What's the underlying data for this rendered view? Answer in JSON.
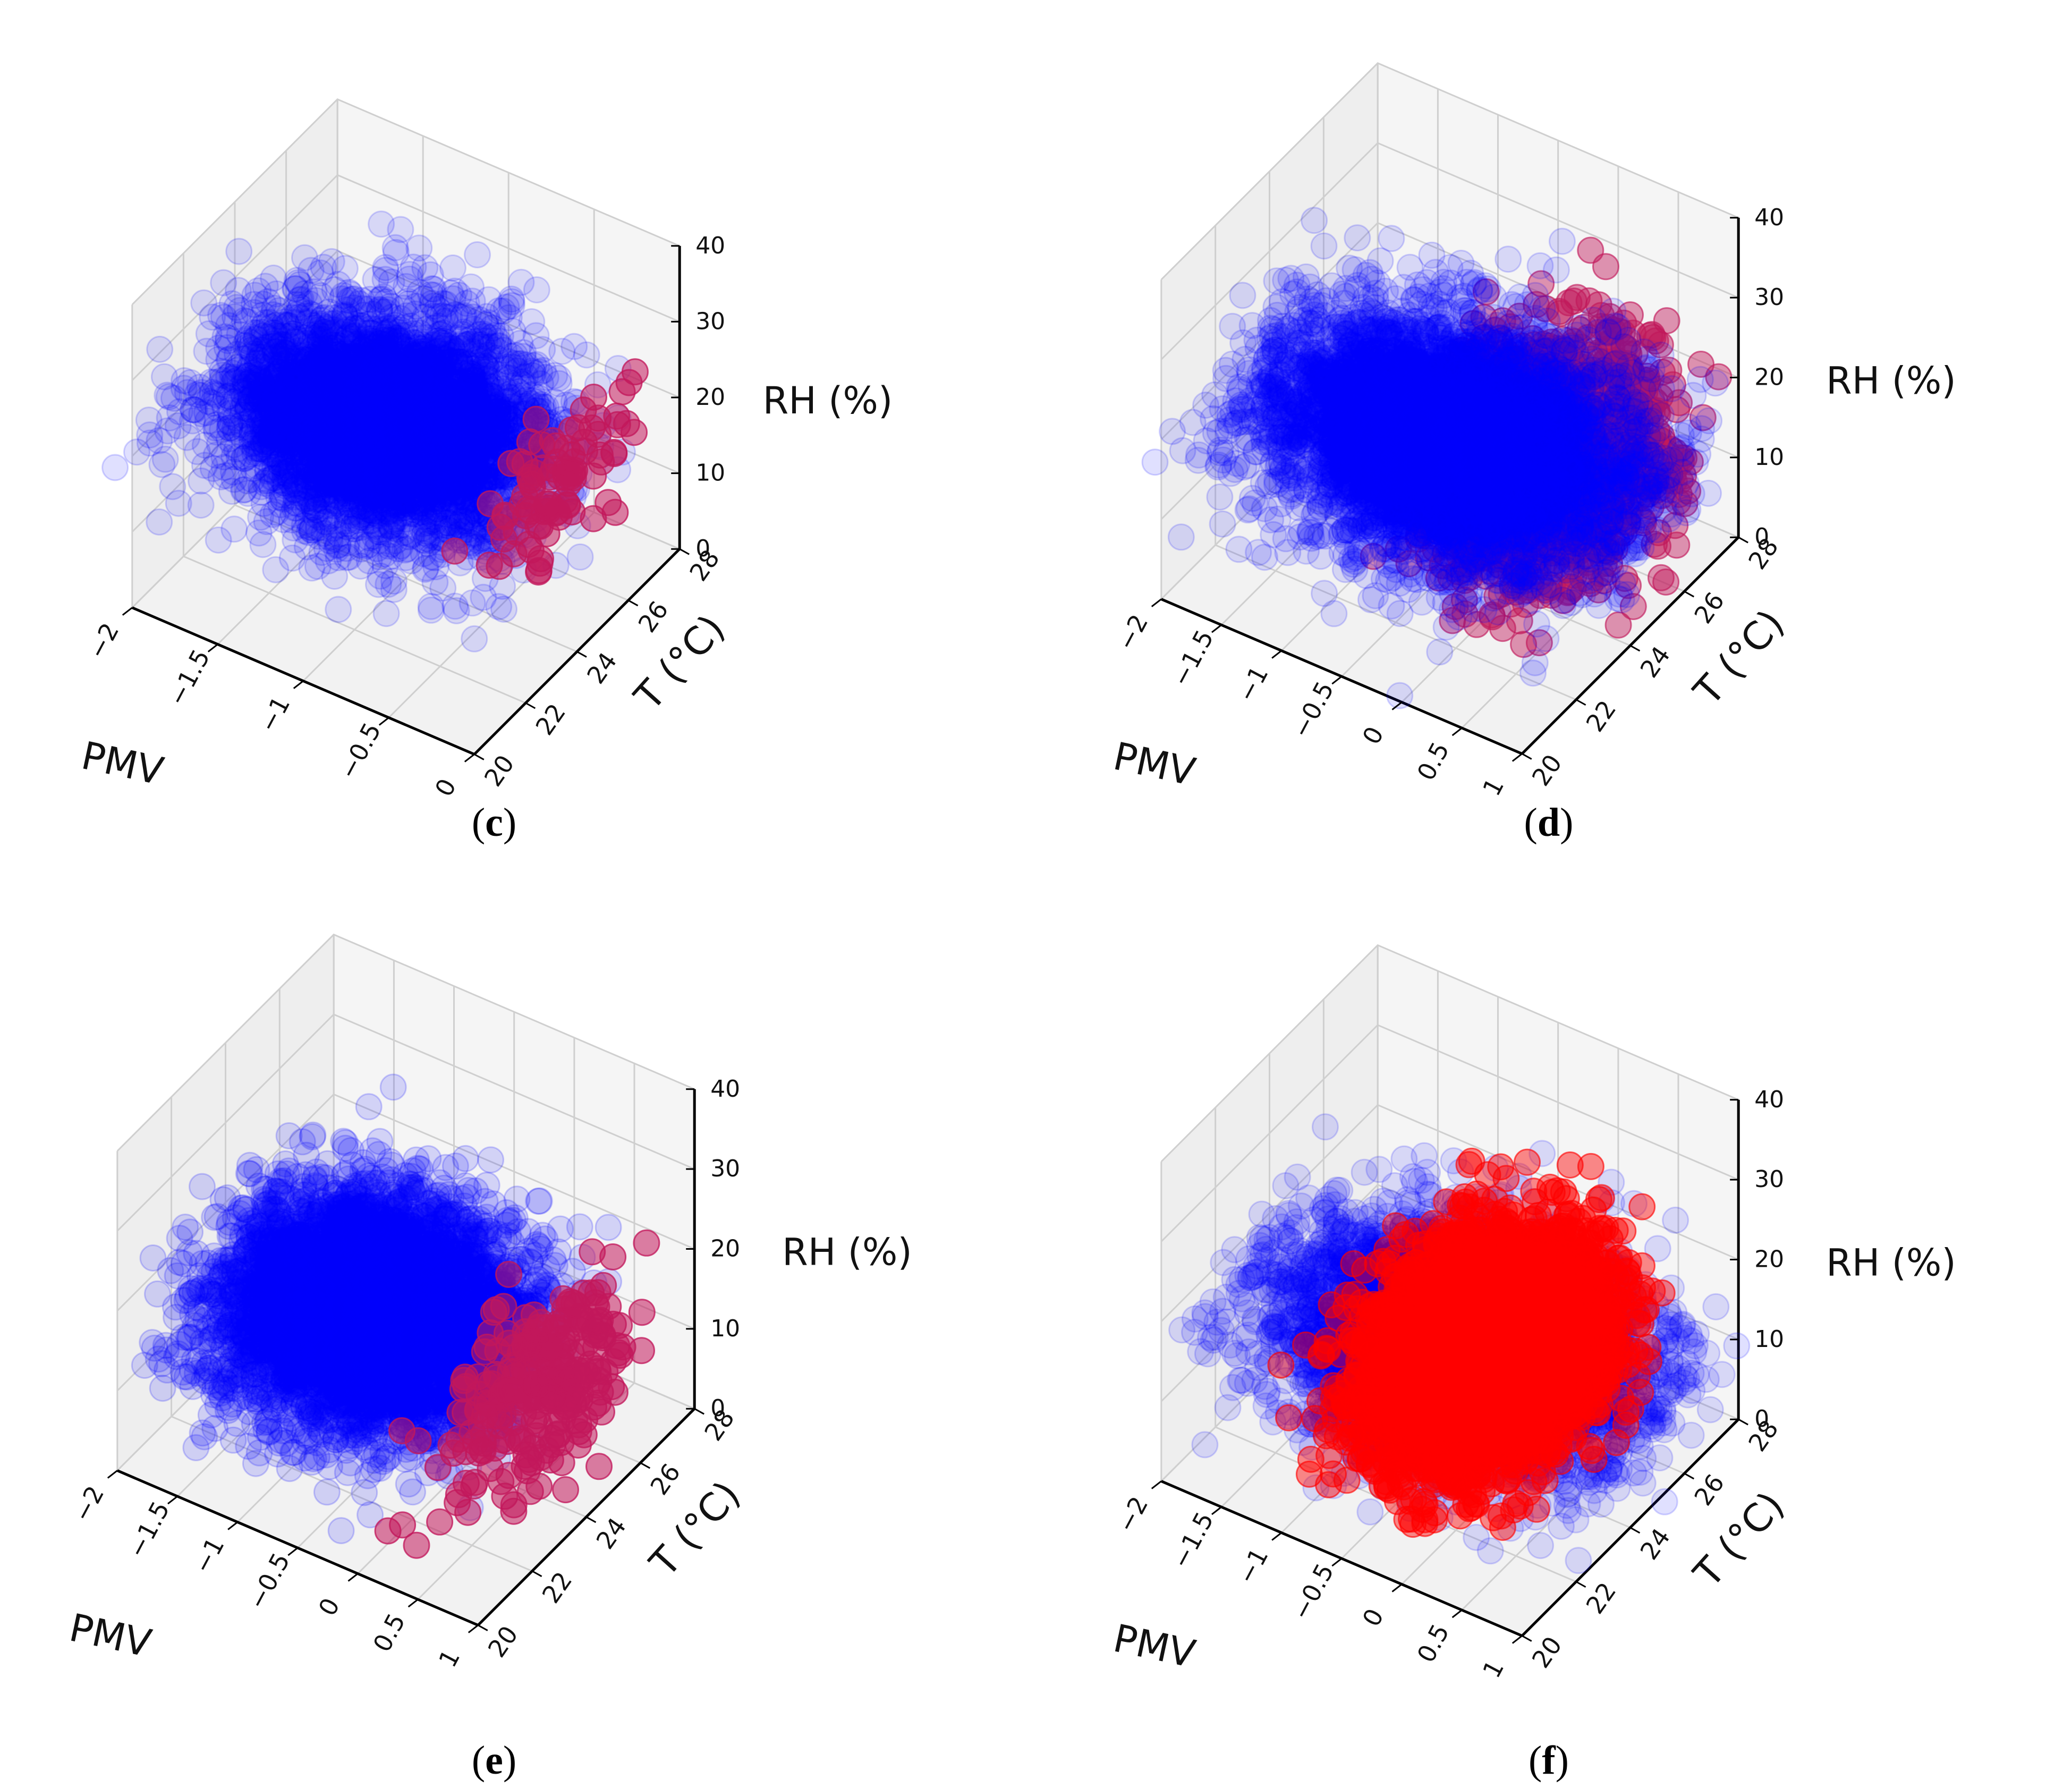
{
  "colors": {
    "blue_points": "#0000ff",
    "red_points": "#ff0000",
    "mixed_points": "#c2185b",
    "pane": "#f2f2f2",
    "grid": "#cfcfcf"
  },
  "chart_data": [
    {
      "id": "c",
      "type": "scatter3d",
      "caption": "c",
      "xlabel": "PMV",
      "ylabel": "T (°C)",
      "zlabel": "RH (%)",
      "xlim": [
        -2,
        0
      ],
      "ylim": [
        20,
        28
      ],
      "zlim": [
        0,
        40
      ],
      "xticks": [
        "−2",
        "−1.5",
        "−1",
        "−0.5",
        "0"
      ],
      "yticks": [
        "20",
        "22",
        "24",
        "26",
        "28"
      ],
      "zticks": [
        "0",
        "10",
        "20",
        "30",
        "40"
      ],
      "series": [
        {
          "color": "blue",
          "alpha": 0.12,
          "n": 4200,
          "pmv": [
            -2.0,
            -0.3
          ],
          "t": [
            21,
            27.5
          ],
          "rh": [
            8,
            28
          ]
        },
        {
          "color": "mixed",
          "alpha": 0.55,
          "n": 90,
          "pmv": [
            -0.3,
            0.0
          ],
          "t": [
            21,
            27.5
          ],
          "rh": [
            10,
            28
          ]
        }
      ]
    },
    {
      "id": "d",
      "type": "scatter3d",
      "caption": "d",
      "xlabel": "PMV",
      "ylabel": "T (°C)",
      "zlabel": "RH (%)",
      "xlim": [
        -2,
        1
      ],
      "ylim": [
        20,
        28
      ],
      "zlim": [
        0,
        40
      ],
      "xticks": [
        "−2",
        "−1.5",
        "−1",
        "−0.5",
        "0",
        "0.5",
        "1"
      ],
      "yticks": [
        "20",
        "22",
        "24",
        "26",
        "28"
      ],
      "zticks": [
        "0",
        "10",
        "20",
        "30",
        "40"
      ],
      "series": [
        {
          "color": "mixed",
          "alpha": 0.45,
          "n": 1600,
          "pmv": [
            -0.5,
            1.0
          ],
          "t": [
            21,
            27.5
          ],
          "rh": [
            5,
            30
          ]
        },
        {
          "color": "blue",
          "alpha": 0.12,
          "n": 5200,
          "pmv": [
            -2.0,
            0.9
          ],
          "t": [
            21,
            27.5
          ],
          "rh": [
            5,
            24
          ]
        }
      ]
    },
    {
      "id": "e",
      "type": "scatter3d",
      "caption": "e",
      "xlabel": "PMV",
      "ylabel": "T (°C)",
      "zlabel": "RH (%)",
      "xlim": [
        -2,
        1
      ],
      "ylim": [
        20,
        28
      ],
      "zlim": [
        0,
        40
      ],
      "xticks": [
        "−2",
        "−1.5",
        "−1",
        "−0.5",
        "0",
        "0.5",
        "1"
      ],
      "yticks": [
        "20",
        "22",
        "24",
        "26",
        "28"
      ],
      "zticks": [
        "0",
        "10",
        "20",
        "30",
        "40"
      ],
      "series": [
        {
          "color": "blue",
          "alpha": 0.14,
          "n": 5200,
          "pmv": [
            -2.0,
            0.3
          ],
          "t": [
            21,
            27.5
          ],
          "rh": [
            3,
            22
          ]
        },
        {
          "color": "mixed",
          "alpha": 0.55,
          "n": 260,
          "pmv": [
            0.1,
            1.0
          ],
          "t": [
            21,
            27.5
          ],
          "rh": [
            3,
            22
          ]
        }
      ]
    },
    {
      "id": "f",
      "type": "scatter3d",
      "caption": "f",
      "xlabel": "PMV",
      "ylabel": "T (°C)",
      "zlabel": "RH (%)",
      "xlim": [
        -2,
        1
      ],
      "ylim": [
        20,
        28
      ],
      "zlim": [
        0,
        40
      ],
      "xticks": [
        "−2",
        "−1.5",
        "−1",
        "−0.5",
        "0",
        "0.5",
        "1"
      ],
      "yticks": [
        "20",
        "22",
        "24",
        "26",
        "28"
      ],
      "zticks": [
        "0",
        "10",
        "20",
        "30",
        "40"
      ],
      "series": [
        {
          "color": "blue",
          "alpha": 0.12,
          "n": 3800,
          "pmv": [
            -2.0,
            1.0
          ],
          "t": [
            21,
            27.5
          ],
          "rh": [
            3,
            22
          ]
        },
        {
          "color": "red",
          "alpha": 0.45,
          "n": 4200,
          "pmv": [
            -1.0,
            0.5
          ],
          "t": [
            21,
            27.5
          ],
          "rh": [
            3,
            24
          ]
        }
      ]
    }
  ]
}
